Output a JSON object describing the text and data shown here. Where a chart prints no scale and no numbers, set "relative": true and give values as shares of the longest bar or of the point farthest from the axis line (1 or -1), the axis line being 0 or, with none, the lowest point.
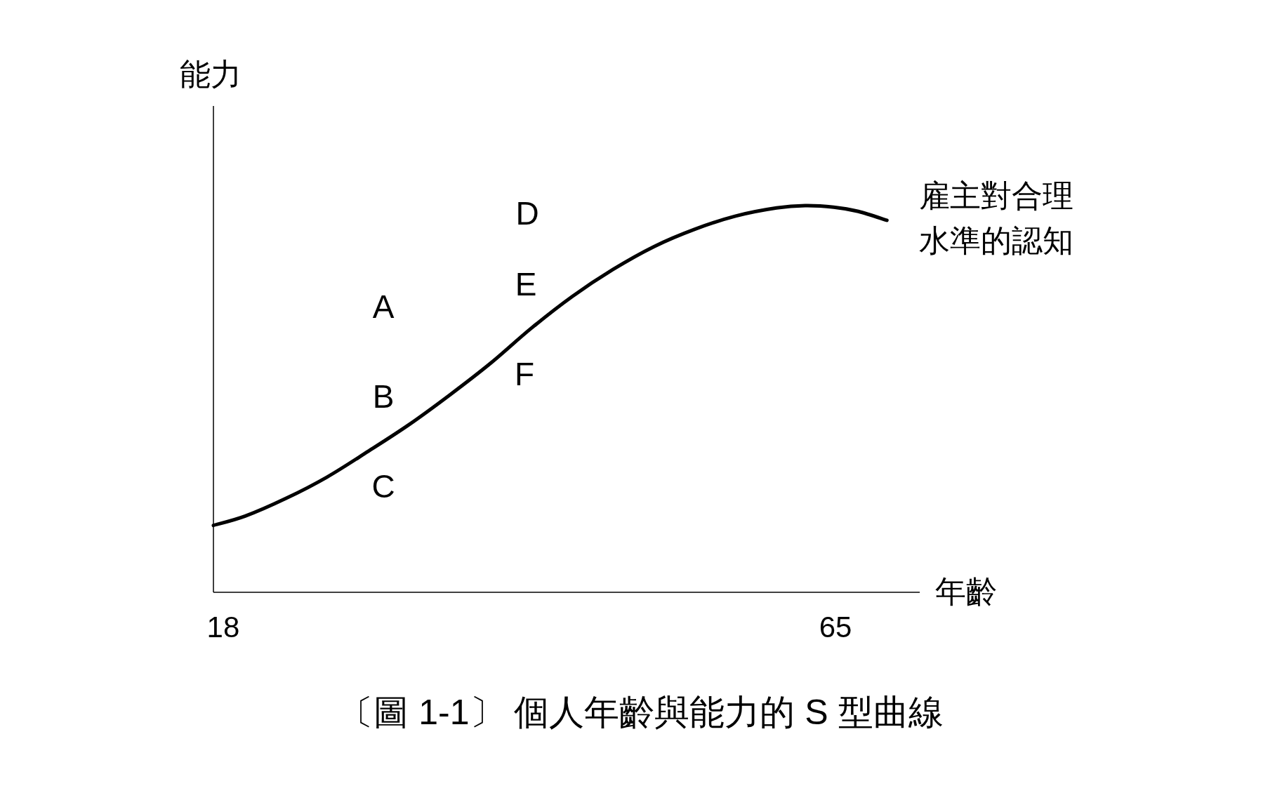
{
  "chart_data": {
    "type": "line",
    "title": "〔圖 1-1〕 個人年齡與能力的 S 型曲線",
    "xlabel": "年齡",
    "ylabel": "能力",
    "relative": true,
    "xlim": [
      17.25,
      71.46
    ],
    "xticks": [
      18,
      65
    ],
    "tick_labels": "x",
    "grid": false,
    "line_style": "solid",
    "series": [
      {
        "name": "雇主對合理水準的認知",
        "color": "#000000",
        "x": [
          17.25,
          19.69,
          22.83,
          25.97,
          29.1,
          32.24,
          35.38,
          38.51,
          41.65,
          44.79,
          47.92,
          51.06,
          54.2,
          57.33,
          60.47,
          62.67,
          64.86,
          66.75,
          68.94
        ],
        "values": [
          0.173,
          0.197,
          0.243,
          0.298,
          0.364,
          0.433,
          0.51,
          0.592,
          0.683,
          0.765,
          0.835,
          0.894,
          0.939,
          0.973,
          0.994,
          1,
          0.996,
          0.985,
          0.962
        ]
      }
    ],
    "annotations": [
      "A",
      "B",
      "C",
      "D",
      "E",
      "F"
    ]
  }
}
